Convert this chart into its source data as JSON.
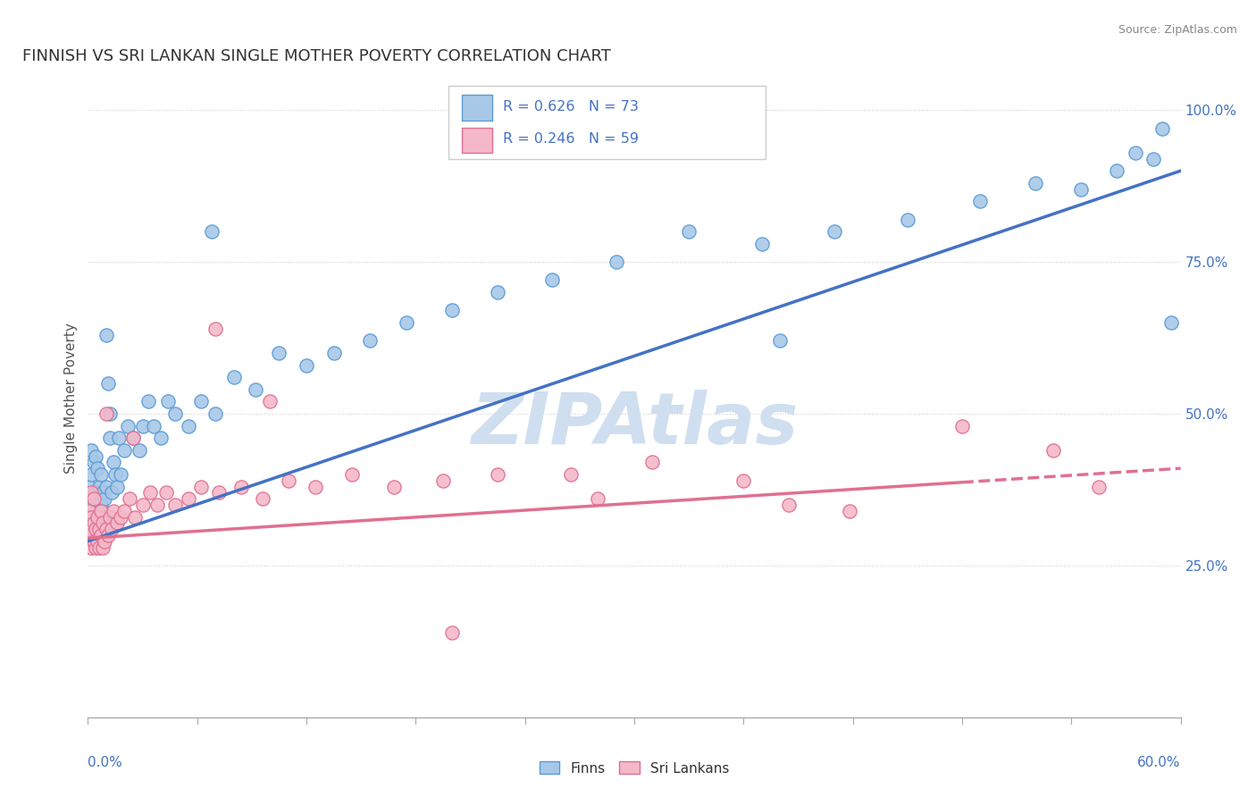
{
  "title": "FINNISH VS SRI LANKAN SINGLE MOTHER POVERTY CORRELATION CHART",
  "source": "Source: ZipAtlas.com",
  "ylabel": "Single Mother Poverty",
  "right_yticks": [
    0.25,
    0.5,
    0.75,
    1.0
  ],
  "right_yticklabels": [
    "25.0%",
    "50.0%",
    "75.0%",
    "100.0%"
  ],
  "finn_R": 0.626,
  "finn_N": 73,
  "srilankan_R": 0.246,
  "srilankan_N": 59,
  "finn_color": "#a8c8e8",
  "finn_edge_color": "#5b9bd5",
  "finn_line_color": "#4472c4",
  "srilankan_color": "#f4b8c8",
  "srilankan_edge_color": "#e07090",
  "srilankan_line_color": "#e07090",
  "xlim": [
    0.0,
    0.6
  ],
  "ylim": [
    0.0,
    1.05
  ],
  "finn_trend": [
    0.0,
    0.6,
    0.29,
    0.9
  ],
  "srilankan_trend": [
    0.0,
    0.6,
    0.295,
    0.41
  ],
  "srilankan_trend_dashed_start": 0.48,
  "grid_color": "#d0d0d0",
  "bg_color": "#ffffff",
  "title_color": "#333333",
  "source_color": "#888888",
  "legend_text_color": "#4472c4",
  "watermark_color": "#d0dff0",
  "finn_scatter_x": [
    0.001,
    0.001,
    0.002,
    0.002,
    0.002,
    0.003,
    0.003,
    0.003,
    0.004,
    0.004,
    0.004,
    0.005,
    0.005,
    0.005,
    0.006,
    0.006,
    0.007,
    0.007,
    0.007,
    0.008,
    0.008,
    0.009,
    0.009,
    0.01,
    0.01,
    0.011,
    0.012,
    0.012,
    0.013,
    0.014,
    0.015,
    0.016,
    0.017,
    0.018,
    0.02,
    0.022,
    0.025,
    0.028,
    0.03,
    0.033,
    0.036,
    0.04,
    0.044,
    0.048,
    0.055,
    0.062,
    0.07,
    0.08,
    0.092,
    0.105,
    0.12,
    0.135,
    0.155,
    0.175,
    0.2,
    0.225,
    0.255,
    0.29,
    0.33,
    0.37,
    0.41,
    0.45,
    0.49,
    0.52,
    0.545,
    0.565,
    0.575,
    0.585,
    0.59,
    0.595,
    0.01,
    0.068,
    0.38
  ],
  "finn_scatter_y": [
    0.33,
    0.38,
    0.35,
    0.4,
    0.44,
    0.3,
    0.36,
    0.42,
    0.32,
    0.37,
    0.43,
    0.31,
    0.36,
    0.41,
    0.33,
    0.38,
    0.3,
    0.35,
    0.4,
    0.32,
    0.37,
    0.31,
    0.36,
    0.33,
    0.38,
    0.55,
    0.46,
    0.5,
    0.37,
    0.42,
    0.4,
    0.38,
    0.46,
    0.4,
    0.44,
    0.48,
    0.46,
    0.44,
    0.48,
    0.52,
    0.48,
    0.46,
    0.52,
    0.5,
    0.48,
    0.52,
    0.5,
    0.56,
    0.54,
    0.6,
    0.58,
    0.6,
    0.62,
    0.65,
    0.67,
    0.7,
    0.72,
    0.75,
    0.8,
    0.78,
    0.8,
    0.82,
    0.85,
    0.88,
    0.87,
    0.9,
    0.93,
    0.92,
    0.97,
    0.65,
    0.63,
    0.8,
    0.62
  ],
  "srilankan_scatter_x": [
    0.001,
    0.001,
    0.002,
    0.002,
    0.002,
    0.003,
    0.003,
    0.003,
    0.004,
    0.004,
    0.005,
    0.005,
    0.006,
    0.006,
    0.007,
    0.007,
    0.008,
    0.008,
    0.009,
    0.01,
    0.011,
    0.012,
    0.013,
    0.014,
    0.016,
    0.018,
    0.02,
    0.023,
    0.026,
    0.03,
    0.034,
    0.038,
    0.043,
    0.048,
    0.055,
    0.062,
    0.072,
    0.084,
    0.096,
    0.11,
    0.125,
    0.145,
    0.168,
    0.195,
    0.225,
    0.265,
    0.31,
    0.36,
    0.418,
    0.48,
    0.53,
    0.555,
    0.01,
    0.025,
    0.07,
    0.1,
    0.2,
    0.28,
    0.385
  ],
  "srilankan_scatter_y": [
    0.3,
    0.34,
    0.28,
    0.33,
    0.37,
    0.29,
    0.32,
    0.36,
    0.28,
    0.31,
    0.29,
    0.33,
    0.28,
    0.31,
    0.3,
    0.34,
    0.28,
    0.32,
    0.29,
    0.31,
    0.3,
    0.33,
    0.31,
    0.34,
    0.32,
    0.33,
    0.34,
    0.36,
    0.33,
    0.35,
    0.37,
    0.35,
    0.37,
    0.35,
    0.36,
    0.38,
    0.37,
    0.38,
    0.36,
    0.39,
    0.38,
    0.4,
    0.38,
    0.39,
    0.4,
    0.4,
    0.42,
    0.39,
    0.34,
    0.48,
    0.44,
    0.38,
    0.5,
    0.46,
    0.64,
    0.52,
    0.14,
    0.36,
    0.35
  ]
}
